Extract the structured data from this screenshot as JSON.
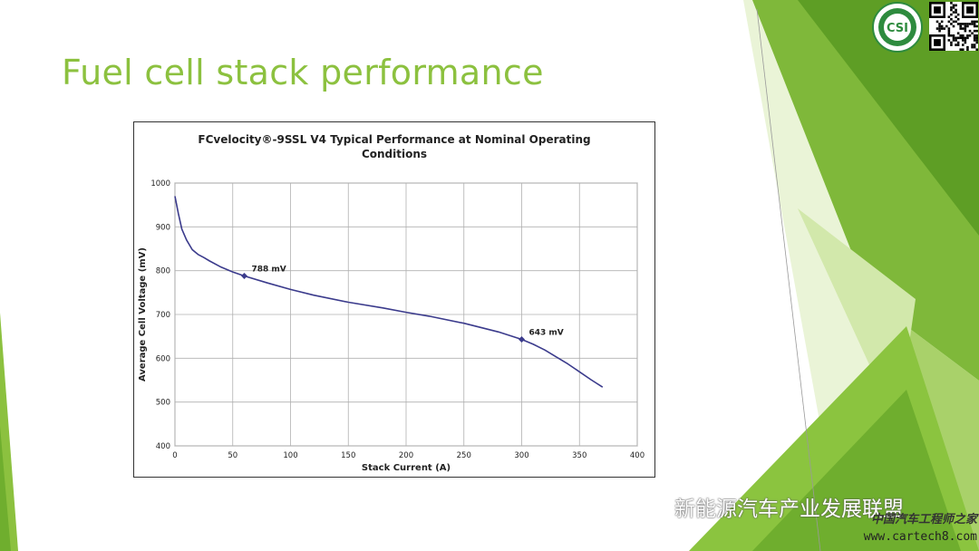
{
  "slide": {
    "title": "Fuel cell stack performance"
  },
  "theme": {
    "title_color": "#8cc13f",
    "deco_dark_green": "#6eaa2c",
    "deco_light_green": "#b6d97a",
    "deco_pale_green": "#d9ecb6",
    "curve_color": "#3b3b8c"
  },
  "chart_data": {
    "type": "line",
    "title": "FCvelocity®-9SSL V4  Typical Performance at Nominal Operating Conditions",
    "title_lines": [
      "FCvelocity®-9SSL V4  Typical Performance at Nominal Operating",
      "Conditions"
    ],
    "xlabel": "Stack Current (A)",
    "ylabel": "Average Cell Voltage (mV)",
    "xlim": [
      0,
      400
    ],
    "ylim": [
      400,
      1000
    ],
    "x_ticks": [
      0,
      50,
      100,
      150,
      200,
      250,
      300,
      350,
      400
    ],
    "y_ticks": [
      400,
      500,
      600,
      700,
      800,
      900,
      1000
    ],
    "grid": true,
    "series": [
      {
        "x": [
          0,
          3,
          6,
          10,
          15,
          20,
          25,
          30,
          40,
          50,
          60,
          80,
          100,
          120,
          150,
          180,
          200,
          220,
          250,
          280,
          300,
          310,
          320,
          330,
          340,
          350,
          360,
          370
        ],
        "y": [
          970,
          930,
          895,
          870,
          848,
          837,
          830,
          822,
          808,
          797,
          788,
          772,
          757,
          744,
          728,
          715,
          705,
          696,
          680,
          660,
          643,
          632,
          619,
          603,
          587,
          569,
          551,
          534
        ]
      }
    ],
    "annotations": [
      {
        "x": 60,
        "y": 788,
        "label": "788 mV"
      },
      {
        "x": 300,
        "y": 643,
        "label": "643 mV"
      }
    ]
  },
  "watermark": {
    "text": "新能源汽车产业发展联盟",
    "icon": "wechat-icon"
  },
  "corner_mark": {
    "cn": "中国汽车工程师之家",
    "url": "www.cartech8.com"
  },
  "logo": {
    "text": "CSI"
  }
}
